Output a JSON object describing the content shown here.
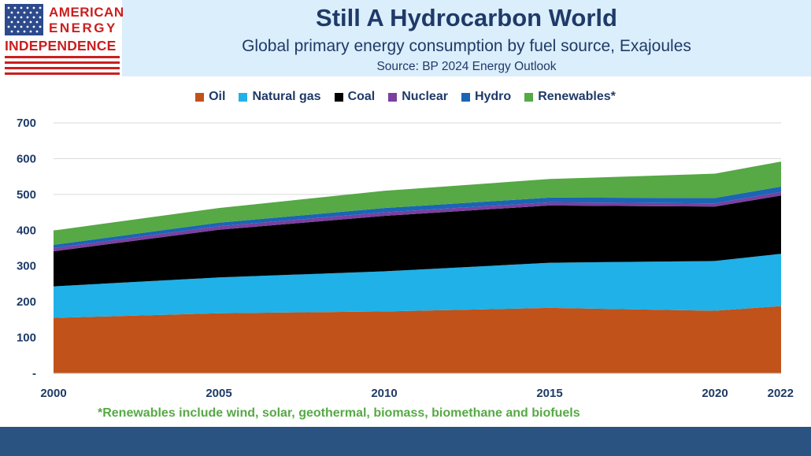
{
  "logo": {
    "line1": "AMERICAN",
    "line2": "ENERGY",
    "line3": "INDEPENDENCE",
    "flag_blue": "#2c4a8c",
    "flag_red": "#cc1f1f"
  },
  "header": {
    "title": "Still A Hydrocarbon World",
    "subtitle": "Global primary energy consumption by fuel source, Exajoules",
    "source": "Source: BP 2024 Energy Outlook"
  },
  "footnote": "*Renewables include wind, solar, geothermal, biomass, biomethane and biofuels",
  "colors": {
    "header_band": "#dbeefb",
    "title_text": "#1f3a68",
    "footer_band": "#2a5382",
    "footnote_text": "#56a945"
  },
  "chart_data": {
    "type": "area",
    "stacked": true,
    "x": [
      2000,
      2005,
      2010,
      2015,
      2020,
      2022
    ],
    "x_tick_labels": [
      "2000",
      "2005",
      "2010",
      "2015",
      "2020",
      "2022"
    ],
    "ylim": [
      0,
      700
    ],
    "y_ticks": [
      0,
      100,
      200,
      300,
      400,
      500,
      600,
      700
    ],
    "y_tick_labels": [
      "-",
      "100",
      "200",
      "300",
      "400",
      "500",
      "600",
      "700"
    ],
    "grid": true,
    "legend_position": "top",
    "series": [
      {
        "name": "Oil",
        "color": "#c0521a",
        "values": [
          155,
          168,
          173,
          183,
          175,
          188
        ]
      },
      {
        "name": "Natural gas",
        "color": "#1fb1e8",
        "values": [
          88,
          100,
          112,
          126,
          139,
          146
        ]
      },
      {
        "name": "Coal",
        "color": "#000000",
        "values": [
          98,
          133,
          155,
          160,
          152,
          163
        ]
      },
      {
        "name": "Nuclear",
        "color": "#7b3fa0",
        "values": [
          9,
          10,
          10,
          9,
          9,
          10
        ]
      },
      {
        "name": "Hydro",
        "color": "#1b65b5",
        "values": [
          9,
          10,
          12,
          13,
          15,
          15
        ]
      },
      {
        "name": "Renewables*",
        "color": "#56a945",
        "values": [
          40,
          41,
          48,
          52,
          68,
          70
        ]
      }
    ]
  }
}
